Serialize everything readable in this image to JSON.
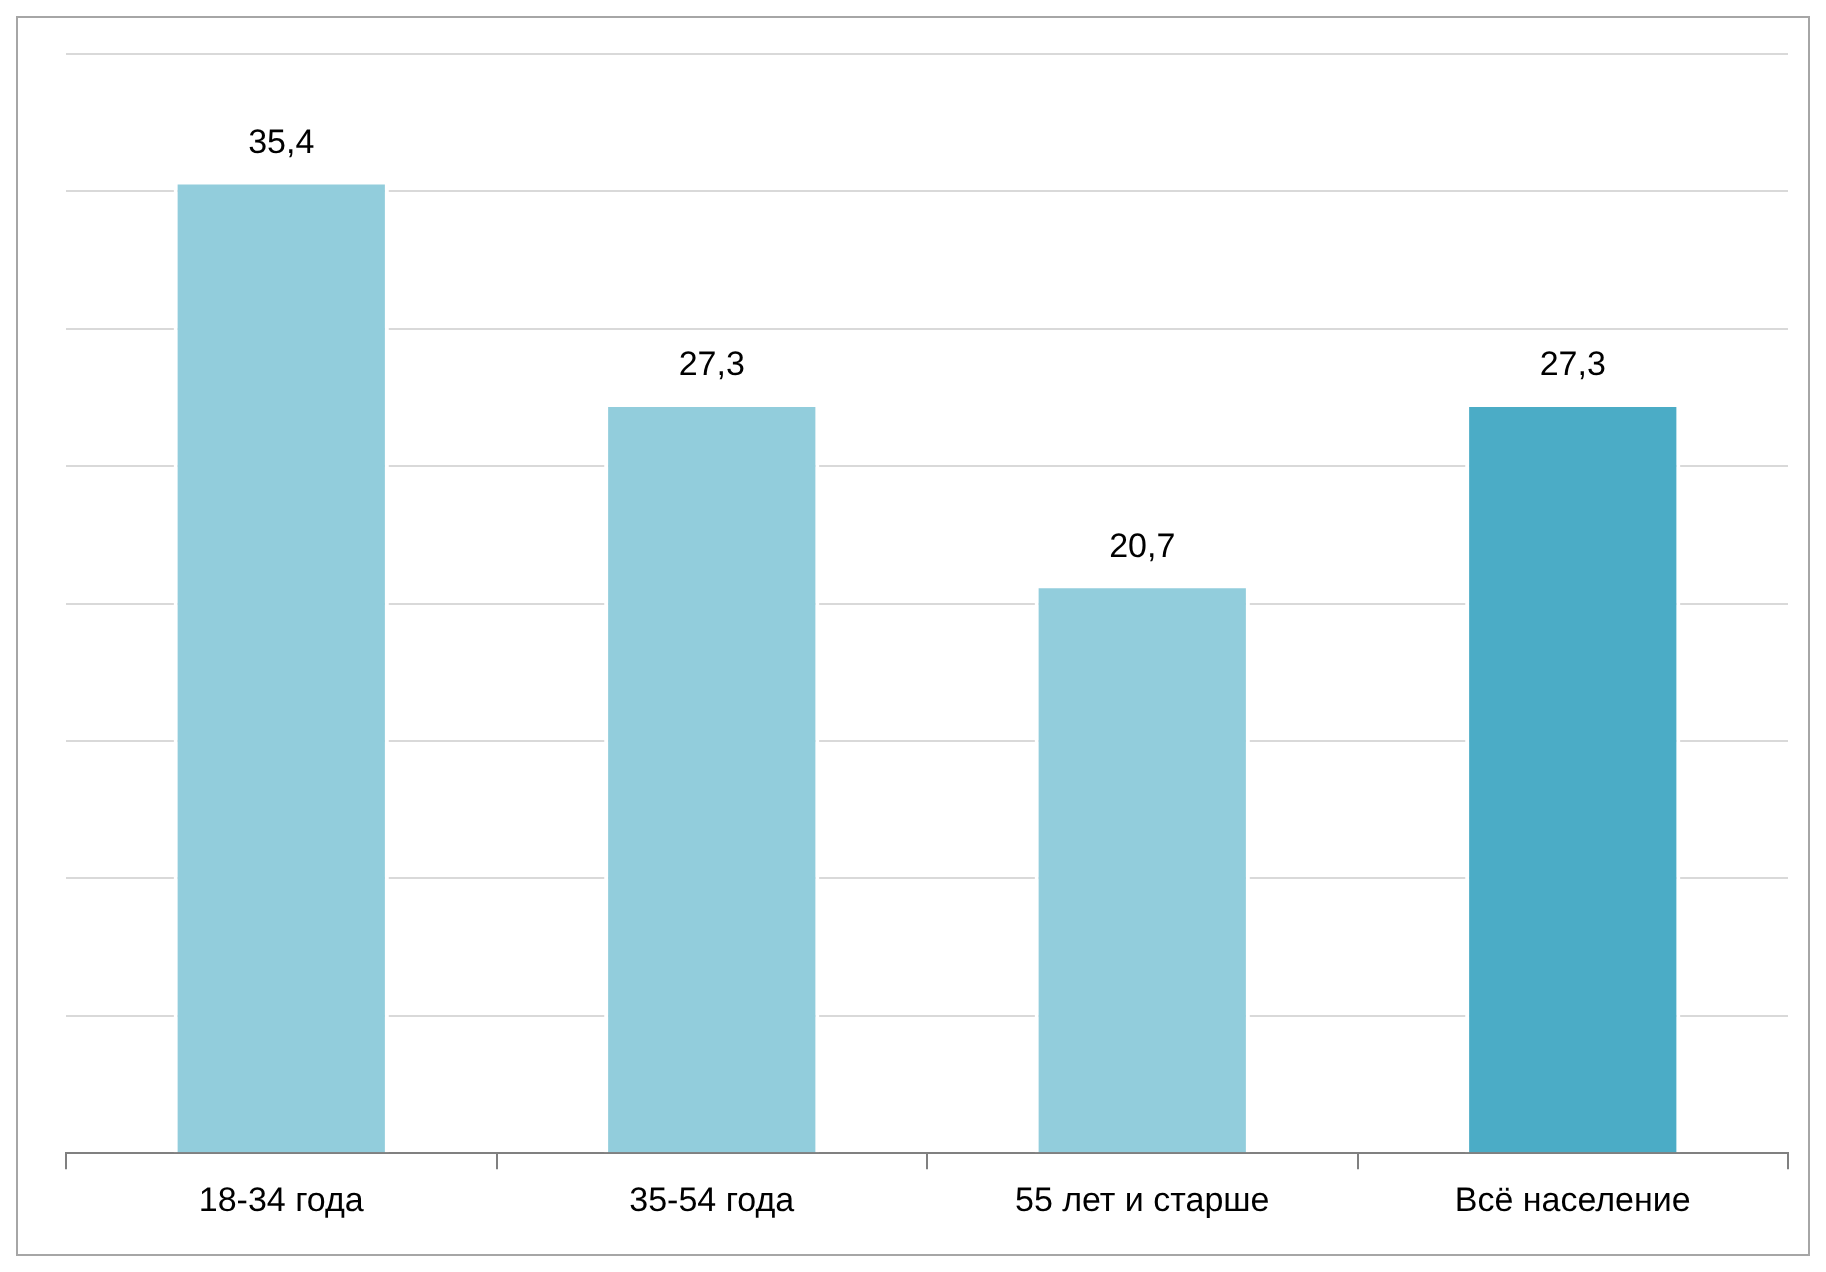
{
  "chart_data": {
    "type": "bar",
    "categories": [
      "18-34 года",
      "35-54 года",
      "55 лет и старше",
      "Всё население"
    ],
    "values": [
      35.4,
      27.3,
      20.7,
      27.3
    ],
    "value_labels": [
      "35,4",
      "27,3",
      "20,7",
      "27,3"
    ],
    "colors": [
      "#92cddc",
      "#92cddc",
      "#92cddc",
      "#4bacc6"
    ],
    "grid": "y",
    "tick_labels": "x",
    "legend": false
  }
}
